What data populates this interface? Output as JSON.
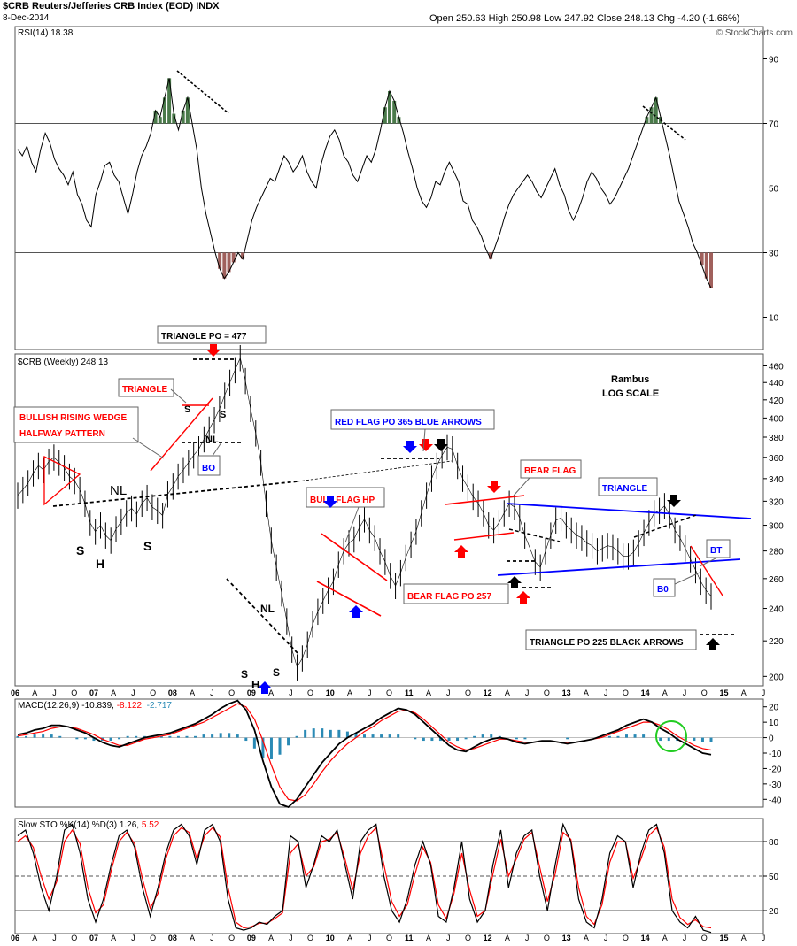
{
  "header": {
    "symbol_title": "$CRB Reuters/Jefferies CRB Index (EOD) INDX",
    "date": "8-Dec-2014",
    "ohlc": "Open 250.63  High 250.98  Low 247.92  Close 248.13  Chg -4.20 (-1.66%)",
    "watermark": "© StockCharts.com"
  },
  "colors": {
    "price": "#000000",
    "rsi_overbought": "#4a7a4a",
    "rsi_oversold": "#a0605c",
    "macd_signal": "#ff0000",
    "macd_hist": "#2a8ab5",
    "annotation_red": "#ff0000",
    "annotation_blue": "#0000ff",
    "circle": "#22cc22"
  },
  "chart_data": [
    {
      "type": "line",
      "panel": "RSI",
      "title": "RSI(14) 18.38",
      "yticks": [
        90,
        70,
        50,
        30,
        10
      ],
      "ylim": [
        0,
        100
      ],
      "reference_lines": [
        70,
        50,
        30
      ],
      "series": [
        {
          "values": [
            62,
            60,
            63,
            58,
            55,
            62,
            67,
            64,
            59,
            56,
            54,
            51,
            55,
            48,
            45,
            40,
            38,
            48,
            52,
            57,
            58,
            54,
            52,
            47,
            42,
            48,
            55,
            60,
            63,
            67,
            74,
            72,
            78,
            84,
            73,
            68,
            74,
            78,
            70,
            62,
            50,
            42,
            36,
            30,
            25,
            22,
            24,
            27,
            30,
            28,
            34,
            40,
            44,
            47,
            50,
            53,
            52,
            56,
            60,
            58,
            55,
            57,
            60,
            55,
            52,
            50,
            57,
            62,
            66,
            68,
            65,
            60,
            58,
            54,
            52,
            56,
            60,
            58,
            62,
            68,
            75,
            80,
            77,
            72,
            67,
            61,
            56,
            50,
            46,
            44,
            47,
            52,
            51,
            55,
            58,
            55,
            52,
            46,
            45,
            40,
            38,
            35,
            31,
            28,
            32,
            36,
            41,
            45,
            48,
            50,
            52,
            54,
            52,
            49,
            47,
            50,
            53,
            56,
            51,
            48,
            43,
            40,
            43,
            47,
            52,
            55,
            53,
            50,
            48,
            45,
            47,
            50,
            53,
            56,
            60,
            64,
            68,
            72,
            75,
            78,
            72,
            66,
            60,
            53,
            46,
            42,
            38,
            33,
            30,
            26,
            22,
            19
          ]
        }
      ]
    },
    {
      "type": "line",
      "panel": "Price",
      "title": "$CRB (Weekly) 248.13",
      "scale": "log",
      "yticks": [
        460,
        440,
        420,
        400,
        380,
        360,
        340,
        320,
        300,
        280,
        260,
        240,
        220,
        200
      ],
      "ylim": [
        195,
        475
      ],
      "xticks": [
        "06",
        "A",
        "J",
        "O",
        "07",
        "A",
        "J",
        "O",
        "08",
        "A",
        "J",
        "O",
        "09",
        "A",
        "J",
        "O",
        "10",
        "A",
        "J",
        "O",
        "11",
        "A",
        "J",
        "O",
        "12",
        "A",
        "J",
        "O",
        "13",
        "A",
        "J",
        "O",
        "14",
        "A",
        "J",
        "O",
        "15",
        "A",
        "J"
      ],
      "series": [
        {
          "values": [
            325,
            330,
            336,
            345,
            352,
            348,
            356,
            360,
            355,
            350,
            342,
            338,
            330,
            318,
            302,
            295,
            300,
            292,
            288,
            297,
            303,
            310,
            314,
            309,
            318,
            323,
            315,
            312,
            308,
            326,
            333,
            342,
            348,
            355,
            362,
            368,
            378,
            388,
            398,
            410,
            425,
            440,
            455,
            470,
            442,
            410,
            384,
            355,
            318,
            288,
            268,
            250,
            232,
            215,
            205,
            210,
            218,
            230,
            238,
            245,
            252,
            258,
            270,
            280,
            286,
            289,
            298,
            305,
            296,
            290,
            280,
            272,
            262,
            255,
            264,
            275,
            285,
            295,
            310,
            325,
            340,
            352,
            362,
            370,
            368,
            352,
            340,
            332,
            324,
            318,
            310,
            300,
            296,
            302,
            310,
            318,
            315,
            306,
            292,
            282,
            272,
            268,
            280,
            292,
            304,
            306,
            300,
            296,
            292,
            290,
            286,
            284,
            280,
            282,
            284,
            283,
            280,
            276,
            276,
            279,
            286,
            294,
            302,
            310,
            312,
            316,
            308,
            296,
            290,
            282,
            274,
            266,
            258,
            252,
            248
          ]
        }
      ]
    },
    {
      "type": "line",
      "panel": "MACD",
      "title": "MACD(12,26,9) -10.839, -8.122, -2.717",
      "yticks": [
        20,
        10,
        0,
        -10,
        -20,
        -30,
        -40
      ],
      "ylim": [
        -45,
        25
      ],
      "legend": [
        {
          "label": "MACD(12,26,9)",
          "value": "-10.839"
        },
        {
          "label": "",
          "value": "-8.122"
        },
        {
          "label": "",
          "value": "-2.717"
        }
      ],
      "series": [
        {
          "name": "MACD",
          "values": [
            2,
            3,
            5,
            6,
            8,
            8,
            7,
            5,
            3,
            0,
            -3,
            -5,
            -6,
            -4,
            -2,
            0,
            1,
            2,
            3,
            5,
            7,
            9,
            12,
            15,
            19,
            22,
            24,
            18,
            5,
            -15,
            -32,
            -43,
            -45,
            -40,
            -32,
            -24,
            -16,
            -10,
            -4,
            0,
            3,
            6,
            9,
            13,
            16,
            19,
            18,
            15,
            10,
            5,
            0,
            -5,
            -8,
            -9,
            -6,
            -3,
            -1,
            0,
            -1,
            -3,
            -4,
            -3,
            -2,
            -2,
            -3,
            -4,
            -3,
            -2,
            -1,
            1,
            3,
            5,
            8,
            10,
            12,
            10,
            6,
            3,
            -1,
            -4,
            -7,
            -10,
            -11
          ]
        },
        {
          "name": "Signal",
          "values": [
            1,
            2,
            3,
            4,
            6,
            7,
            7,
            6,
            4,
            2,
            -1,
            -3,
            -5,
            -5,
            -3,
            -1,
            0,
            1,
            2,
            4,
            6,
            8,
            10,
            13,
            16,
            19,
            22,
            20,
            12,
            -2,
            -18,
            -32,
            -40,
            -41,
            -37,
            -30,
            -22,
            -15,
            -9,
            -4,
            0,
            4,
            7,
            11,
            14,
            17,
            18,
            16,
            12,
            7,
            2,
            -3,
            -6,
            -8,
            -7,
            -5,
            -3,
            -1,
            -1,
            -2,
            -3,
            -3,
            -2,
            -2,
            -3,
            -3,
            -3,
            -2,
            -1,
            0,
            2,
            4,
            6,
            8,
            10,
            10,
            8,
            5,
            1,
            -2,
            -5,
            -7,
            -8
          ]
        }
      ]
    },
    {
      "type": "line",
      "panel": "STO",
      "title": "Slow STO %K(14) %D(3) 1.26, 5.52",
      "yticks": [
        80,
        50,
        20
      ],
      "ylim": [
        0,
        100
      ],
      "reference_lines": [
        80,
        50,
        20
      ],
      "legend": [
        {
          "label": "Slow STO %K(14) %D(3)",
          "value": "1.26"
        },
        {
          "label": "",
          "value": "5.52"
        }
      ],
      "series": [
        {
          "name": "%K",
          "values": [
            85,
            90,
            70,
            40,
            20,
            50,
            90,
            95,
            70,
            30,
            10,
            30,
            60,
            85,
            90,
            75,
            40,
            15,
            40,
            70,
            90,
            95,
            85,
            60,
            90,
            95,
            80,
            30,
            5,
            3,
            5,
            10,
            8,
            15,
            20,
            85,
            80,
            40,
            60,
            85,
            80,
            90,
            60,
            30,
            80,
            90,
            95,
            50,
            20,
            10,
            30,
            60,
            80,
            60,
            15,
            10,
            40,
            80,
            30,
            10,
            20,
            60,
            90,
            40,
            70,
            85,
            90,
            50,
            20,
            60,
            95,
            80,
            30,
            10,
            5,
            30,
            70,
            85,
            80,
            40,
            70,
            90,
            95,
            70,
            20,
            10,
            5,
            15,
            3,
            1
          ]
        },
        {
          "name": "%D",
          "values": [
            80,
            85,
            75,
            50,
            30,
            45,
            80,
            90,
            78,
            40,
            18,
            25,
            55,
            80,
            88,
            78,
            48,
            22,
            35,
            65,
            85,
            92,
            88,
            65,
            85,
            92,
            84,
            40,
            10,
            5,
            6,
            9,
            9,
            13,
            18,
            70,
            78,
            50,
            58,
            80,
            82,
            88,
            65,
            38,
            70,
            85,
            92,
            60,
            28,
            15,
            25,
            52,
            75,
            62,
            25,
            13,
            35,
            70,
            38,
            15,
            20,
            52,
            82,
            50,
            65,
            82,
            88,
            58,
            28,
            52,
            88,
            82,
            40,
            15,
            8,
            25,
            62,
            80,
            80,
            48,
            65,
            85,
            92,
            75,
            30,
            14,
            8,
            12,
            6,
            5
          ]
        }
      ]
    }
  ],
  "annotations": {
    "triangle_po_477": "TRIANGLE  PO = 477",
    "triangle": "TRIANGLE",
    "bullish_wedge_1": "BULLISH RISING WEDGE",
    "bullish_wedge_2": "HALFWAY PATTERN",
    "bo_1": "BO",
    "nl_1": "NL",
    "nl_2": "NL",
    "nl_3": "NL",
    "s": "S",
    "h": "H",
    "bull_flag": "BULL FLAG HP",
    "red_flag": "RED FLAG PO 365 BLUE ARROWS",
    "bear_flag": "BEAR FLAG",
    "bear_flag_po": "BEAR FLAG PO 257",
    "triangle_2": "TRIANGLE",
    "bt": "BT",
    "bo_2": "B0",
    "triangle_po_225": "TRIANGLE PO 225 BLACK ARROWS",
    "rambus": "Rambus",
    "log_scale": "LOG SCALE"
  }
}
